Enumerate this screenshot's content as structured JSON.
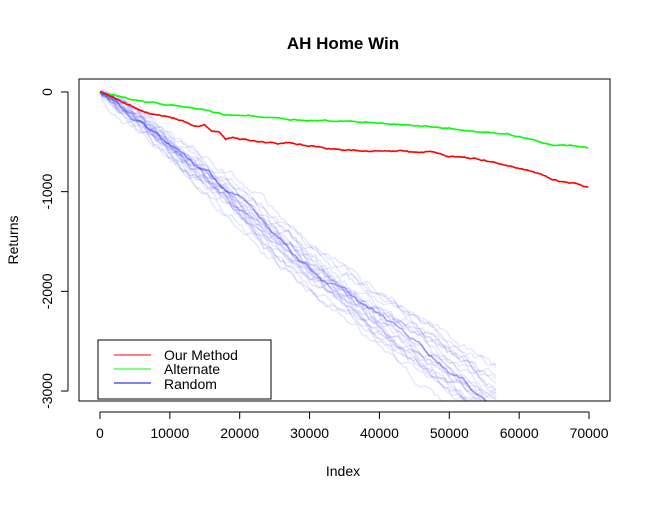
{
  "chart_data": {
    "type": "line",
    "title": "AH Home Win",
    "xlabel": "Index",
    "ylabel": "Returns",
    "xlim": [
      -3000,
      73000
    ],
    "ylim": [
      -3100,
      130
    ],
    "x_ticks": [
      0,
      10000,
      20000,
      30000,
      40000,
      50000,
      60000,
      70000
    ],
    "y_ticks": [
      0,
      -1000,
      -2000,
      -3000
    ],
    "grid": false,
    "legend_position": "bottom-left",
    "series": [
      {
        "name": "Our Method",
        "color": "#ff0000",
        "x": [
          0,
          2000,
          4000,
          6000,
          8000,
          10000,
          12000,
          14000,
          15000,
          16000,
          17000,
          18000,
          19000,
          20000,
          25000,
          30000,
          35000,
          40000,
          45000,
          48000,
          50000,
          55000,
          60000,
          62000,
          65000,
          68000,
          70000
        ],
        "values": [
          0,
          -70,
          -140,
          -190,
          -230,
          -250,
          -300,
          -340,
          -320,
          -390,
          -400,
          -480,
          -460,
          -480,
          -510,
          -540,
          -570,
          -600,
          -620,
          -620,
          -650,
          -680,
          -760,
          -800,
          -880,
          -920,
          -950
        ]
      },
      {
        "name": "Alternate",
        "color": "#00ff00",
        "x": [
          0,
          5000,
          10000,
          15000,
          18000,
          19000,
          20000,
          25000,
          30000,
          35000,
          40000,
          45000,
          50000,
          55000,
          60000,
          65000,
          70000
        ],
        "values": [
          0,
          -80,
          -140,
          -180,
          -230,
          -240,
          -230,
          -250,
          -270,
          -290,
          -300,
          -330,
          -360,
          -400,
          -450,
          -540,
          -560
        ]
      },
      {
        "name": "Random",
        "color": "#0000ff",
        "x": [
          0,
          5000,
          10000,
          15000,
          20000,
          25000,
          30000,
          35000,
          40000,
          45000,
          50000,
          55000,
          57000
        ],
        "values": [
          0,
          -260,
          -560,
          -820,
          -1120,
          -1430,
          -1740,
          -2000,
          -2270,
          -2500,
          -2760,
          -3030,
          -3100
        ]
      }
    ]
  }
}
